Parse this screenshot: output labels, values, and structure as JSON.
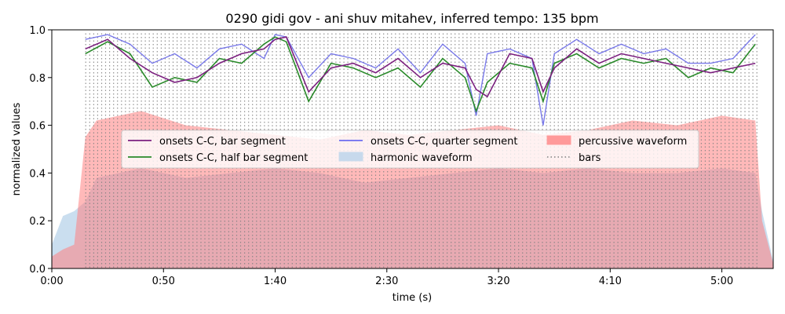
{
  "chart_data": {
    "type": "line",
    "title": "0290 gidi gov - ani shuv mitahev, inferred tempo: 135 bpm",
    "xlabel": "time (s)",
    "ylabel": "normalized values",
    "xlim": [
      0,
      323
    ],
    "ylim": [
      0,
      1.0
    ],
    "x_ticks": [
      0,
      50,
      100,
      150,
      200,
      250,
      300
    ],
    "x_tick_labels": [
      "0:00",
      "0:50",
      "1:40",
      "2:30",
      "3:20",
      "4:10",
      "5:00"
    ],
    "y_ticks": [
      0.0,
      0.2,
      0.4,
      0.6,
      0.8,
      1.0
    ],
    "y_tick_labels": [
      "0.0",
      "0.2",
      "0.4",
      "0.6",
      "0.8",
      "1.0"
    ],
    "grid": false,
    "legend_position": "center",
    "bars": {
      "start": 15.2,
      "end": 317.2,
      "interval": 1.778
    },
    "series": [
      {
        "name": "onsets C-C, bar segment",
        "color": "#7b1f7f",
        "x": [
          15,
          25,
          35,
          45,
          55,
          65,
          75,
          85,
          95,
          100,
          105,
          115,
          125,
          135,
          145,
          155,
          165,
          175,
          185,
          190,
          195,
          205,
          215,
          220,
          225,
          235,
          245,
          255,
          265,
          275,
          285,
          295,
          305,
          315
        ],
        "values": [
          0.92,
          0.96,
          0.88,
          0.82,
          0.78,
          0.8,
          0.86,
          0.9,
          0.92,
          0.96,
          0.97,
          0.74,
          0.84,
          0.86,
          0.82,
          0.88,
          0.8,
          0.86,
          0.84,
          0.75,
          0.72,
          0.9,
          0.88,
          0.74,
          0.84,
          0.92,
          0.86,
          0.9,
          0.88,
          0.86,
          0.84,
          0.82,
          0.84,
          0.86
        ]
      },
      {
        "name": "onsets C-C, half bar segment",
        "color": "#2a8a2a",
        "x": [
          15,
          25,
          35,
          45,
          55,
          65,
          75,
          85,
          95,
          100,
          105,
          115,
          125,
          135,
          145,
          155,
          165,
          175,
          185,
          190,
          195,
          205,
          215,
          220,
          225,
          235,
          245,
          255,
          265,
          275,
          285,
          295,
          305,
          315
        ],
        "values": [
          0.9,
          0.95,
          0.9,
          0.76,
          0.8,
          0.78,
          0.88,
          0.86,
          0.94,
          0.97,
          0.95,
          0.7,
          0.86,
          0.84,
          0.8,
          0.84,
          0.76,
          0.88,
          0.8,
          0.66,
          0.78,
          0.86,
          0.84,
          0.7,
          0.86,
          0.9,
          0.84,
          0.88,
          0.86,
          0.88,
          0.8,
          0.84,
          0.82,
          0.94
        ]
      },
      {
        "name": "onsets C-C, quarter segment",
        "color": "#5a5ae6",
        "x": [
          15,
          25,
          35,
          45,
          55,
          65,
          75,
          85,
          95,
          100,
          105,
          115,
          125,
          135,
          145,
          155,
          165,
          175,
          185,
          190,
          195,
          205,
          215,
          220,
          225,
          235,
          245,
          255,
          265,
          275,
          285,
          295,
          305,
          315
        ],
        "values": [
          0.96,
          0.98,
          0.94,
          0.86,
          0.9,
          0.84,
          0.92,
          0.94,
          0.88,
          0.98,
          0.97,
          0.8,
          0.9,
          0.88,
          0.84,
          0.92,
          0.82,
          0.94,
          0.86,
          0.64,
          0.9,
          0.92,
          0.88,
          0.6,
          0.9,
          0.96,
          0.9,
          0.94,
          0.9,
          0.92,
          0.86,
          0.86,
          0.88,
          0.98
        ]
      },
      {
        "name": "harmonic waveform",
        "color": "#b8d3ea",
        "x": [
          0,
          5,
          10,
          15,
          20,
          40,
          60,
          80,
          100,
          120,
          140,
          160,
          180,
          200,
          220,
          240,
          260,
          280,
          300,
          315,
          318,
          323
        ],
        "values": [
          0.1,
          0.22,
          0.24,
          0.28,
          0.38,
          0.42,
          0.38,
          0.4,
          0.42,
          0.4,
          0.36,
          0.38,
          0.4,
          0.42,
          0.4,
          0.42,
          0.4,
          0.4,
          0.42,
          0.4,
          0.24,
          0.03
        ]
      },
      {
        "name": "percussive waveform",
        "color": "#ff8080",
        "x": [
          0,
          5,
          10,
          15,
          20,
          40,
          60,
          80,
          100,
          120,
          140,
          160,
          180,
          200,
          220,
          240,
          260,
          280,
          300,
          315,
          318,
          323
        ],
        "values": [
          0.05,
          0.08,
          0.1,
          0.55,
          0.62,
          0.66,
          0.6,
          0.58,
          0.56,
          0.54,
          0.58,
          0.56,
          0.58,
          0.6,
          0.56,
          0.58,
          0.62,
          0.6,
          0.64,
          0.62,
          0.2,
          0.02
        ]
      }
    ],
    "legend": [
      {
        "label": "onsets C-C, bar segment",
        "kind": "line",
        "color": "#7b1f7f"
      },
      {
        "label": "onsets C-C, half bar segment",
        "kind": "line",
        "color": "#2a8a2a"
      },
      {
        "label": "onsets C-C, quarter segment",
        "kind": "line",
        "color": "#6b6bef"
      },
      {
        "label": "harmonic waveform",
        "kind": "patch",
        "color": "#c7d9ec"
      },
      {
        "label": "percussive waveform",
        "kind": "patch",
        "color": "#ff9a9a"
      },
      {
        "label": "bars",
        "kind": "dotted",
        "color": "#808080"
      }
    ]
  }
}
